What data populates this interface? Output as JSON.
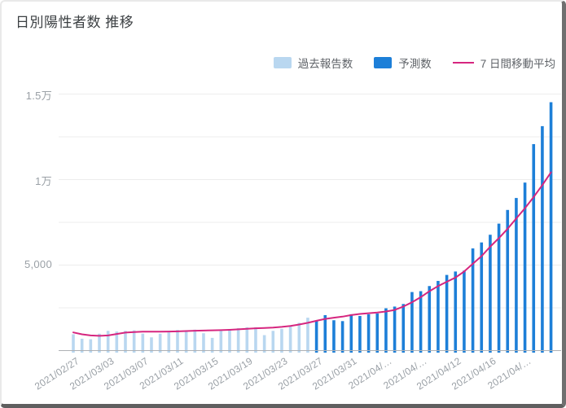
{
  "page": {
    "title": "日別陽性者数 推移"
  },
  "legend": {
    "items": [
      {
        "label": "過去報告数",
        "type": "bar",
        "color": "#b9d7f0"
      },
      {
        "label": "予測数",
        "type": "bar",
        "color": "#1d7fd8"
      },
      {
        "label": "7 日間移動平均",
        "type": "line",
        "color": "#d6267f"
      }
    ]
  },
  "chart_data": {
    "type": "bar",
    "title": "日別陽性者数 推移",
    "xlabel": "",
    "ylabel": "",
    "ylim": [
      0,
      15500
    ],
    "gridline_step": 2500,
    "grid": true,
    "legend_position": "top-right",
    "x": [
      "2021/02/27",
      "2021/02/28",
      "2021/03/01",
      "2021/03/02",
      "2021/03/03",
      "2021/03/04",
      "2021/03/05",
      "2021/03/06",
      "2021/03/07",
      "2021/03/08",
      "2021/03/09",
      "2021/03/10",
      "2021/03/11",
      "2021/03/12",
      "2021/03/13",
      "2021/03/14",
      "2021/03/15",
      "2021/03/16",
      "2021/03/17",
      "2021/03/18",
      "2021/03/19",
      "2021/03/20",
      "2021/03/21",
      "2021/03/22",
      "2021/03/23",
      "2021/03/24",
      "2021/03/25",
      "2021/03/26",
      "2021/03/27",
      "2021/03/28",
      "2021/03/29",
      "2021/03/30",
      "2021/03/31",
      "2021/04/01",
      "2021/04/02",
      "2021/04/03",
      "2021/04/04",
      "2021/04/05",
      "2021/04/06",
      "2021/04/07",
      "2021/04/08",
      "2021/04/09",
      "2021/04/10",
      "2021/04/11",
      "2021/04/12",
      "2021/04/13",
      "2021/04/14",
      "2021/04/15",
      "2021/04/16",
      "2021/04/17",
      "2021/04/18",
      "2021/04/19",
      "2021/04/20",
      "2021/04/21",
      "2021/04/22",
      "2021/04/23"
    ],
    "series": [
      {
        "name": "過去報告数",
        "type": "bar",
        "color": "#b9d7f0",
        "start_index": 0,
        "values": [
          930,
          670,
          640,
          965,
          1130,
          1090,
          1130,
          1160,
          965,
          750,
          960,
          1040,
          1180,
          1150,
          1200,
          990,
          720,
          1130,
          1240,
          1290,
          1340,
          1340,
          880,
          1130,
          1250,
          1420,
          1600,
          1900
        ]
      },
      {
        "name": "予測数",
        "type": "bar",
        "color": "#1d7fd8",
        "start_index": 28,
        "values": [
          1700,
          2050,
          1750,
          1700,
          2100,
          2000,
          2100,
          2150,
          2450,
          2550,
          2700,
          3400,
          3450,
          3750,
          4050,
          4400,
          4600,
          4650,
          5950,
          6300,
          6750,
          7400,
          8200,
          8900,
          9800,
          12050,
          13100,
          14500
        ]
      },
      {
        "name": "7 日間移動平均",
        "type": "line",
        "color": "#d6267f",
        "start_index": 0,
        "values": [
          1040,
          930,
          860,
          840,
          860,
          950,
          1030,
          1060,
          1080,
          1080,
          1080,
          1090,
          1100,
          1120,
          1140,
          1150,
          1160,
          1170,
          1190,
          1220,
          1250,
          1280,
          1300,
          1320,
          1360,
          1420,
          1500,
          1600,
          1720,
          1830,
          1900,
          1960,
          2050,
          2120,
          2160,
          2200,
          2260,
          2350,
          2550,
          2800,
          3100,
          3450,
          3750,
          4000,
          4250,
          4600,
          5050,
          5500,
          6050,
          6550,
          7100,
          7700,
          8300,
          8950,
          9650,
          10400
        ]
      }
    ],
    "x_tick_labels": [
      "2021/02/27",
      "2021/03/03",
      "2021/03/07",
      "2021/03/11",
      "2021/03/15",
      "2021/03/19",
      "2021/03/23",
      "2021/03/27",
      "2021/03/31",
      "2021/04/…",
      "2021/04/…",
      "2021/04/12",
      "2021/04/16",
      "2021/04/…"
    ],
    "x_tick_every": 4,
    "y_ticks": [
      {
        "value": 5000,
        "label": "5,000"
      },
      {
        "value": 10000,
        "label": "1万"
      },
      {
        "value": 15000,
        "label": "1.5万"
      }
    ]
  }
}
